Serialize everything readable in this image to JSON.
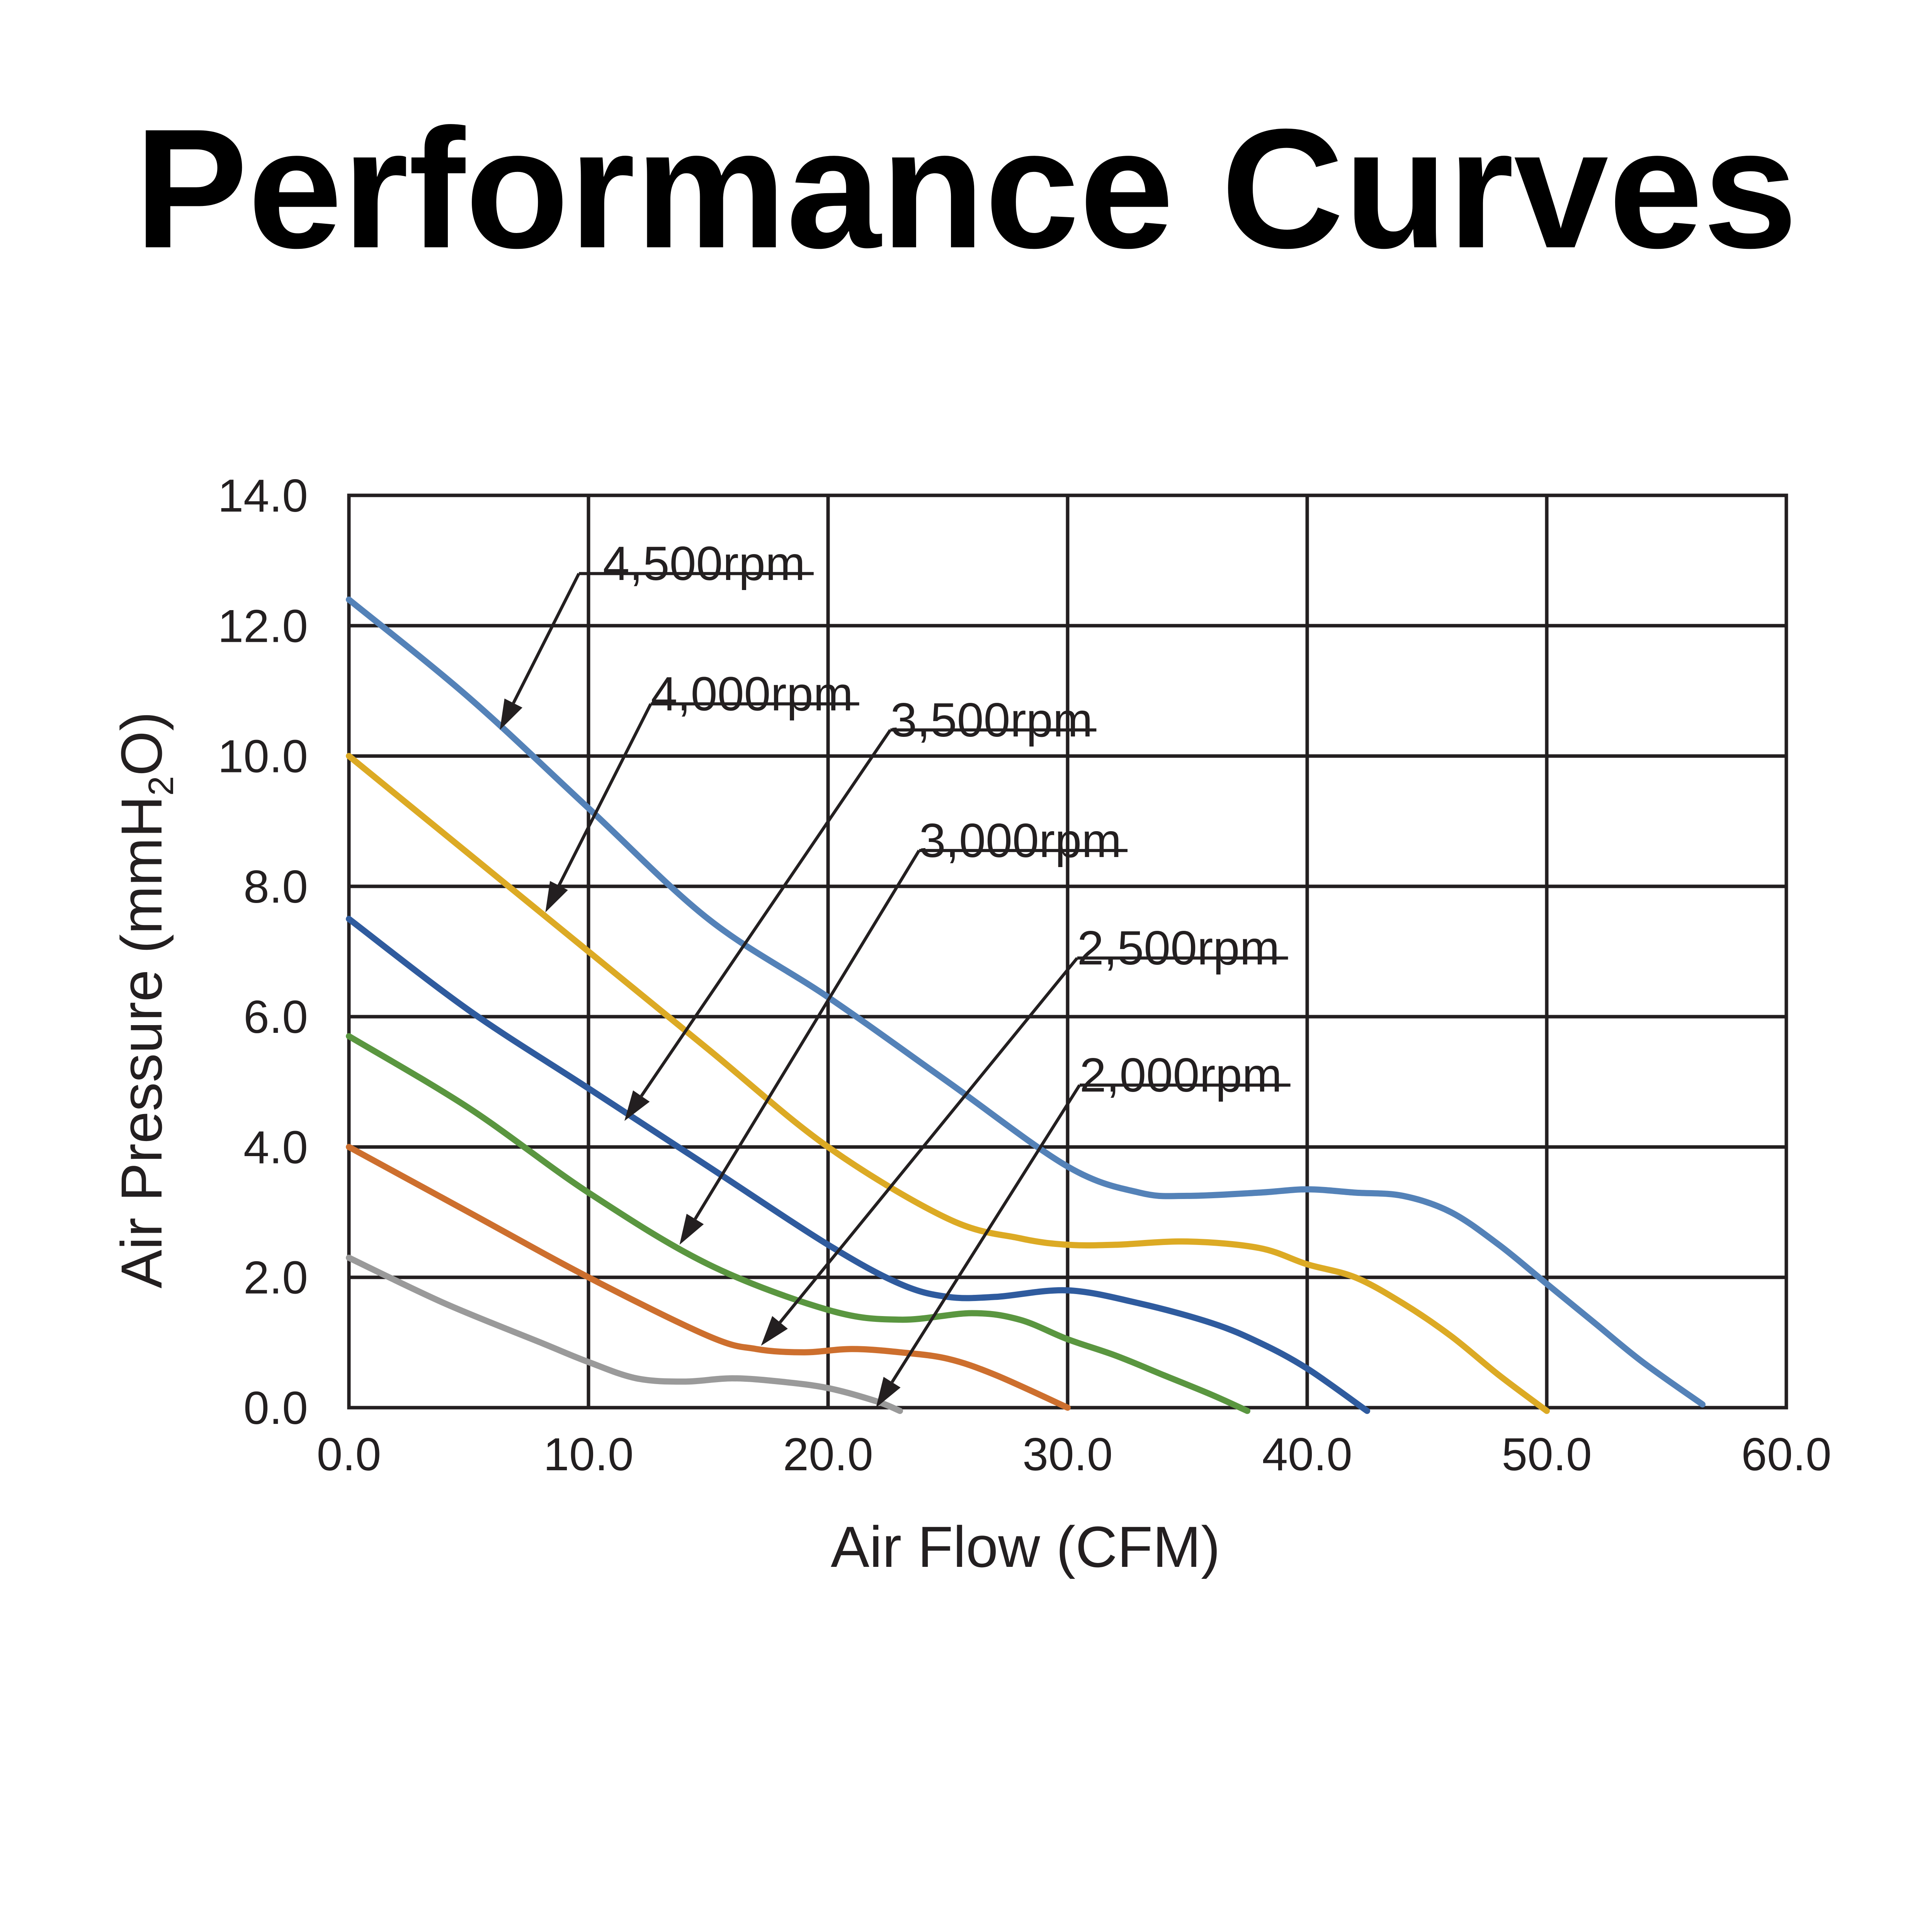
{
  "chart_data": {
    "type": "line",
    "title": "Performance Curves",
    "xlabel": "Air Flow (CFM)",
    "ylabel": {
      "main": "Air Pressure (mmH",
      "subscript": "2",
      "tail": "O)"
    },
    "xlim": [
      0,
      60
    ],
    "ylim": [
      0,
      14
    ],
    "x_ticks": [
      0,
      10,
      20,
      30,
      40,
      50,
      60
    ],
    "y_ticks": [
      0,
      2,
      4,
      6,
      8,
      10,
      12,
      14
    ],
    "x_tick_labels": [
      "0.0",
      "10.0",
      "20.0",
      "30.0",
      "40.0",
      "50.0",
      "60.0"
    ],
    "y_tick_labels": [
      "0.0",
      "2.0",
      "4.0",
      "6.0",
      "8.0",
      "10.0",
      "12.0",
      "14.0"
    ],
    "grid": true,
    "series": [
      {
        "name": "4,500rpm",
        "color": "#5482b8",
        "x": [
          0,
          5,
          10,
          15,
          20,
          25,
          30,
          33,
          35,
          38,
          40,
          42,
          44,
          46,
          48,
          50,
          52,
          54,
          56.5
        ],
        "y": [
          12.4,
          10.9,
          9.2,
          7.5,
          6.3,
          5.0,
          3.7,
          3.3,
          3.25,
          3.3,
          3.35,
          3.3,
          3.25,
          3.0,
          2.5,
          1.9,
          1.3,
          0.7,
          0.05
        ]
      },
      {
        "name": "4,000rpm",
        "color": "#dcaa24",
        "x": [
          0,
          4,
          8,
          10,
          15,
          20,
          25,
          28,
          30,
          32,
          35,
          38,
          40,
          42,
          44,
          46,
          48,
          50
        ],
        "y": [
          10.0,
          8.8,
          7.6,
          7.0,
          5.5,
          4.0,
          2.9,
          2.6,
          2.5,
          2.5,
          2.55,
          2.45,
          2.2,
          2.0,
          1.6,
          1.1,
          0.5,
          -0.05
        ]
      },
      {
        "name": "3,500rpm",
        "color": "#2f5b9e",
        "x": [
          0,
          5,
          10,
          15,
          20,
          23,
          25,
          27,
          30,
          33,
          36,
          38,
          40,
          42.5
        ],
        "y": [
          7.5,
          6.1,
          4.9,
          3.7,
          2.5,
          1.9,
          1.7,
          1.7,
          1.8,
          1.6,
          1.3,
          1.0,
          0.6,
          -0.05
        ]
      },
      {
        "name": "3,000rpm",
        "color": "#5a9640",
        "x": [
          0,
          5,
          10,
          15,
          20,
          23,
          26,
          28,
          30,
          32,
          34,
          36,
          37.5
        ],
        "y": [
          5.7,
          4.6,
          3.3,
          2.2,
          1.5,
          1.35,
          1.45,
          1.35,
          1.05,
          0.8,
          0.5,
          0.2,
          -0.05
        ]
      },
      {
        "name": "2,500rpm",
        "color": "#cd6f2e",
        "x": [
          0,
          5,
          10,
          15,
          17,
          19,
          21,
          23,
          25,
          27,
          30
        ],
        "y": [
          4.0,
          3.0,
          2.0,
          1.1,
          0.9,
          0.85,
          0.9,
          0.85,
          0.75,
          0.5,
          0.0
        ]
      },
      {
        "name": "2,000rpm",
        "color": "#9a9a9a",
        "x": [
          0,
          4,
          8,
          10,
          12,
          14,
          16,
          18,
          20,
          22,
          23
        ],
        "y": [
          2.3,
          1.6,
          1.0,
          0.7,
          0.45,
          0.4,
          0.45,
          0.4,
          0.3,
          0.1,
          -0.05
        ]
      }
    ],
    "callouts": [
      {
        "label": "4,500rpm",
        "label_at": [
          10.6,
          12.7
        ],
        "elbow": [
          9.6,
          12.8
        ],
        "shelf_end": [
          19.4,
          12.8
        ],
        "arrow_to": [
          6.3,
          10.4
        ]
      },
      {
        "label": "4,000rpm",
        "label_at": [
          12.6,
          10.7
        ],
        "elbow": [
          12.6,
          10.8
        ],
        "shelf_end": [
          21.3,
          10.8
        ],
        "arrow_to": [
          8.2,
          7.6
        ]
      },
      {
        "label": "3,500rpm",
        "label_at": [
          22.6,
          10.3
        ],
        "elbow": [
          22.6,
          10.4
        ],
        "shelf_end": [
          31.2,
          10.4
        ],
        "arrow_to": [
          11.5,
          4.4
        ]
      },
      {
        "label": "3,000rpm",
        "label_at": [
          23.8,
          8.45
        ],
        "elbow": [
          23.8,
          8.55
        ],
        "shelf_end": [
          32.5,
          8.55
        ],
        "arrow_to": [
          13.8,
          2.5
        ]
      },
      {
        "label": "2,500rpm",
        "label_at": [
          30.4,
          6.8
        ],
        "elbow": [
          30.4,
          6.9
        ],
        "shelf_end": [
          39.2,
          6.9
        ],
        "arrow_to": [
          17.2,
          0.95
        ]
      },
      {
        "label": "2,000rpm",
        "label_at": [
          30.5,
          4.85
        ],
        "elbow": [
          30.5,
          4.95
        ],
        "shelf_end": [
          39.3,
          4.95
        ],
        "arrow_to": [
          22.0,
          0.0
        ]
      }
    ]
  }
}
